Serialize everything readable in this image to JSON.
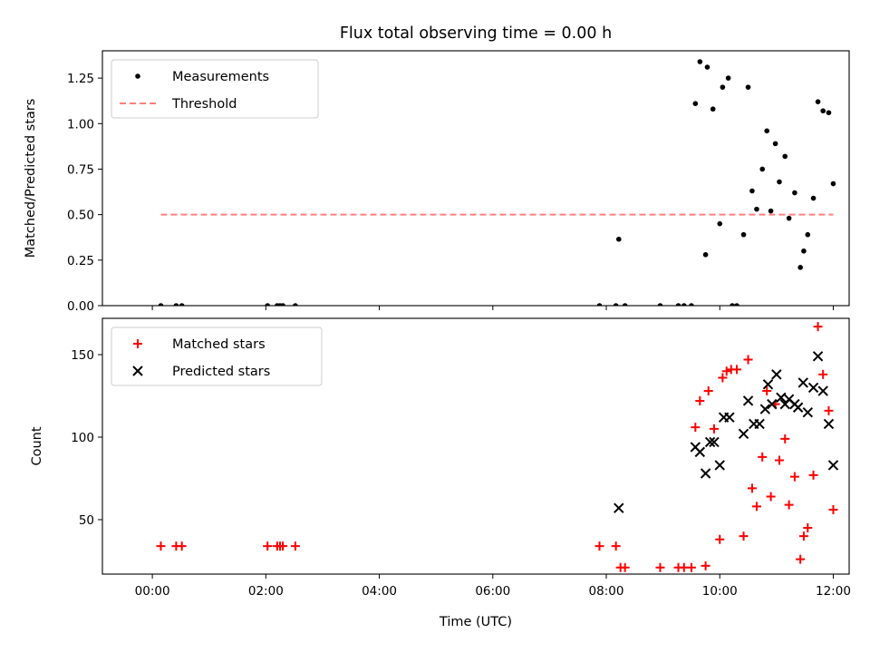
{
  "chart_data": {
    "title": "Flux total observing time = 0.00 h",
    "xlabel": "Time (UTC)",
    "x_unit": "hours UTC",
    "xlim": [
      -0.88,
      12.28
    ],
    "x_ticks": [
      0,
      2,
      4,
      6,
      8,
      10,
      12
    ],
    "x_tick_labels": [
      "00:00",
      "02:00",
      "04:00",
      "06:00",
      "08:00",
      "10:00",
      "12:00"
    ],
    "panels": [
      {
        "type": "scatter",
        "ylabel": "Matched/Predicted stars",
        "ylim": [
          0.0,
          1.4
        ],
        "y_ticks": [
          0.0,
          0.25,
          0.5,
          0.75,
          1.0,
          1.25
        ],
        "y_tick_labels": [
          "0.00",
          "0.25",
          "0.50",
          "0.75",
          "1.00",
          "1.25"
        ],
        "legend": {
          "placement": "upper-left",
          "entries": [
            "Measurements",
            "Threshold"
          ]
        },
        "series": [
          {
            "name": "Measurements",
            "marker": "dot",
            "color": "#000000",
            "points": [
              [
                0.15,
                0.0
              ],
              [
                0.42,
                0.0
              ],
              [
                0.52,
                0.0
              ],
              [
                2.03,
                0.0
              ],
              [
                2.2,
                0.0
              ],
              [
                2.25,
                0.0
              ],
              [
                2.3,
                0.0
              ],
              [
                2.52,
                0.0
              ],
              [
                7.88,
                0.0
              ],
              [
                8.17,
                0.0
              ],
              [
                8.33,
                0.0
              ],
              [
                8.95,
                0.0
              ],
              [
                9.27,
                0.0
              ],
              [
                9.37,
                0.0
              ],
              [
                9.5,
                0.0
              ],
              [
                10.22,
                0.0
              ],
              [
                10.3,
                0.0
              ],
              [
                8.22,
                0.365
              ],
              [
                9.57,
                1.11
              ],
              [
                9.65,
                1.34
              ],
              [
                9.78,
                1.31
              ],
              [
                9.88,
                1.08
              ],
              [
                9.75,
                0.28
              ],
              [
                10.0,
                0.45
              ],
              [
                10.05,
                1.2
              ],
              [
                10.15,
                1.25
              ],
              [
                10.42,
                0.39
              ],
              [
                10.5,
                1.2
              ],
              [
                10.57,
                0.63
              ],
              [
                10.65,
                0.53
              ],
              [
                10.75,
                0.75
              ],
              [
                10.83,
                0.96
              ],
              [
                10.9,
                0.52
              ],
              [
                10.98,
                0.89
              ],
              [
                11.05,
                0.68
              ],
              [
                11.15,
                0.82
              ],
              [
                11.22,
                0.48
              ],
              [
                11.32,
                0.62
              ],
              [
                11.42,
                0.21
              ],
              [
                11.48,
                0.3
              ],
              [
                11.55,
                0.39
              ],
              [
                11.65,
                0.59
              ],
              [
                11.73,
                1.12
              ],
              [
                11.82,
                1.07
              ],
              [
                11.92,
                1.06
              ],
              [
                12.0,
                0.67
              ]
            ]
          },
          {
            "name": "Threshold",
            "marker": "dashed-line",
            "color": "#ff7f7f",
            "points": [
              [
                0.15,
                0.5
              ],
              [
                12.0,
                0.5
              ]
            ]
          }
        ]
      },
      {
        "type": "scatter",
        "ylabel": "Count",
        "ylim": [
          17,
          172
        ],
        "y_ticks": [
          50,
          100,
          150
        ],
        "y_tick_labels": [
          "50",
          "100",
          "150"
        ],
        "legend": {
          "placement": "upper-left",
          "entries": [
            "Matched stars",
            "Predicted stars"
          ]
        },
        "series": [
          {
            "name": "Matched stars",
            "marker": "plus",
            "color": "#ff0000",
            "points": [
              [
                0.15,
                34
              ],
              [
                0.42,
                34
              ],
              [
                0.52,
                34
              ],
              [
                2.03,
                34
              ],
              [
                2.2,
                34
              ],
              [
                2.25,
                34
              ],
              [
                2.3,
                34
              ],
              [
                2.52,
                34
              ],
              [
                7.88,
                34
              ],
              [
                8.17,
                34
              ],
              [
                8.25,
                21
              ],
              [
                8.33,
                21
              ],
              [
                8.95,
                21
              ],
              [
                9.27,
                21
              ],
              [
                9.37,
                21
              ],
              [
                9.5,
                21
              ],
              [
                9.75,
                22
              ],
              [
                9.57,
                106
              ],
              [
                9.65,
                122
              ],
              [
                9.8,
                128
              ],
              [
                9.9,
                105
              ],
              [
                10.0,
                38
              ],
              [
                10.05,
                136
              ],
              [
                10.12,
                140
              ],
              [
                10.2,
                141
              ],
              [
                10.3,
                141
              ],
              [
                10.42,
                40
              ],
              [
                10.5,
                147
              ],
              [
                10.57,
                69
              ],
              [
                10.65,
                58
              ],
              [
                10.75,
                88
              ],
              [
                10.83,
                128
              ],
              [
                10.9,
                64
              ],
              [
                10.98,
                120
              ],
              [
                11.05,
                86
              ],
              [
                11.15,
                99
              ],
              [
                11.22,
                59
              ],
              [
                11.32,
                76
              ],
              [
                11.42,
                26
              ],
              [
                11.48,
                40
              ],
              [
                11.55,
                45
              ],
              [
                11.65,
                77
              ],
              [
                11.73,
                167
              ],
              [
                11.82,
                138
              ],
              [
                11.92,
                116
              ],
              [
                12.0,
                56
              ]
            ]
          },
          {
            "name": "Predicted stars",
            "marker": "x",
            "color": "#000000",
            "points": [
              [
                8.22,
                57
              ],
              [
                9.57,
                94
              ],
              [
                9.65,
                91
              ],
              [
                9.75,
                78
              ],
              [
                9.83,
                97
              ],
              [
                9.9,
                97
              ],
              [
                10.0,
                83
              ],
              [
                10.07,
                112
              ],
              [
                10.17,
                112
              ],
              [
                10.42,
                102
              ],
              [
                10.5,
                122
              ],
              [
                10.6,
                108
              ],
              [
                10.7,
                108
              ],
              [
                10.8,
                117
              ],
              [
                10.85,
                132
              ],
              [
                10.92,
                120
              ],
              [
                11.0,
                138
              ],
              [
                11.08,
                124
              ],
              [
                11.15,
                120
              ],
              [
                11.22,
                123
              ],
              [
                11.32,
                120
              ],
              [
                11.38,
                118
              ],
              [
                11.47,
                133
              ],
              [
                11.55,
                115
              ],
              [
                11.65,
                130
              ],
              [
                11.73,
                149
              ],
              [
                11.82,
                128
              ],
              [
                11.92,
                108
              ],
              [
                12.0,
                83
              ]
            ]
          }
        ]
      }
    ]
  }
}
